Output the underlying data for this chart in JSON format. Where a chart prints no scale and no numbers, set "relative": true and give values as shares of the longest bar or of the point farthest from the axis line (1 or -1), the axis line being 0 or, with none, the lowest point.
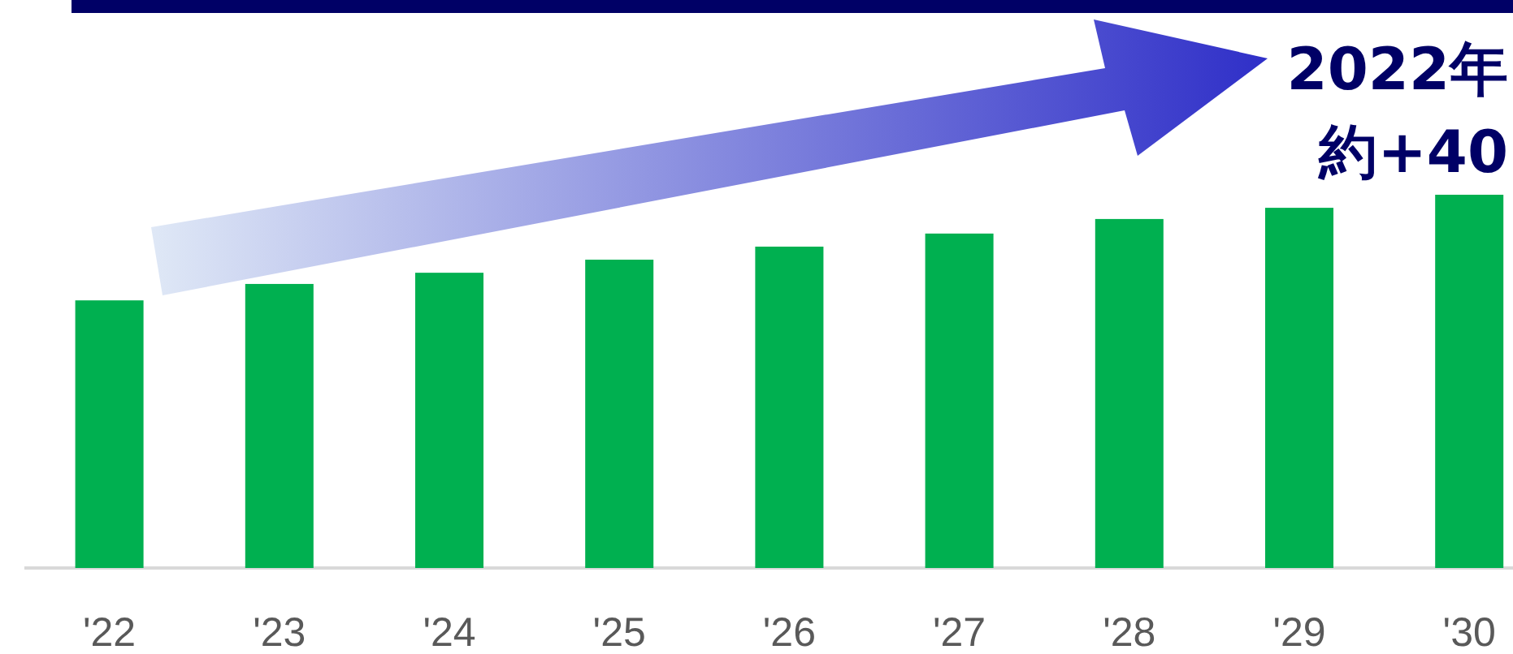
{
  "chart_data": {
    "type": "bar",
    "relative": true,
    "categories": [
      "'22",
      "'23",
      "'24",
      "'25",
      "'26",
      "'27",
      "'28",
      "'29",
      "'30"
    ],
    "values": [
      0.717,
      0.761,
      0.791,
      0.826,
      0.861,
      0.896,
      0.935,
      0.965,
      1
    ],
    "color": "#00b050",
    "annotations": [
      "2022年",
      "約+40"
    ]
  }
}
